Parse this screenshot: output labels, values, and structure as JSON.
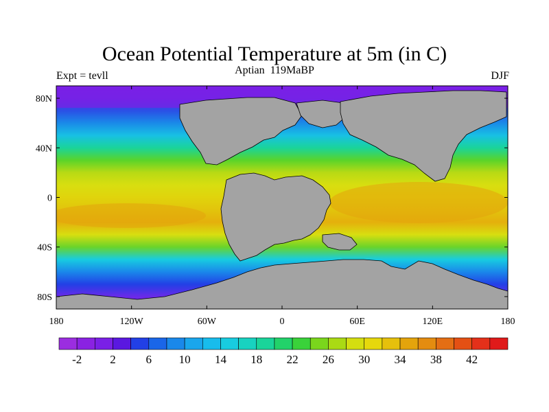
{
  "title": "Ocean Potential Temperature at 5m (in C)",
  "subtitle": "Aptian   119MaBP",
  "left_label": "Expt = tevll",
  "right_label": "DJF",
  "lat_ticks": [
    "80N",
    "40N",
    "0",
    "40S",
    "80S"
  ],
  "lon_ticks": [
    "180",
    "120W",
    "60W",
    "0",
    "60E",
    "120E",
    "180"
  ],
  "colorbar": {
    "labels": [
      "-2",
      "2",
      "6",
      "10",
      "14",
      "18",
      "22",
      "26",
      "30",
      "34",
      "38",
      "42"
    ],
    "colors": [
      "#9b2de0",
      "#8a22e2",
      "#7a20e6",
      "#5a18e0",
      "#2240e6",
      "#1a66e8",
      "#1a88ea",
      "#1aa6ec",
      "#18bcec",
      "#18cce0",
      "#18d2c0",
      "#1ad49a",
      "#22d26a",
      "#3ad23a",
      "#7ad61c",
      "#aada14",
      "#d4de10",
      "#e6d80c",
      "#e6c00c",
      "#e4a40c",
      "#e48c10",
      "#e46e14",
      "#e45014",
      "#e4301a",
      "#e01a1a"
    ]
  },
  "land_color": "#a3a3a3",
  "ocean_gradient": [
    {
      "lat": 90,
      "color": "#7a20e6"
    },
    {
      "lat": 80,
      "color": "#6a2ae8"
    },
    {
      "lat": 70,
      "color": "#2a50e6"
    },
    {
      "lat": 60,
      "color": "#1a8ae8"
    },
    {
      "lat": 50,
      "color": "#18c0e4"
    },
    {
      "lat": 40,
      "color": "#1ad49a"
    },
    {
      "lat": 30,
      "color": "#5ad42a"
    },
    {
      "lat": 20,
      "color": "#b8da14"
    },
    {
      "lat": 10,
      "color": "#d8de10"
    },
    {
      "lat": 0,
      "color": "#e0d40c"
    },
    {
      "lat": -10,
      "color": "#e2c40c"
    },
    {
      "lat": -20,
      "color": "#e4b00c"
    },
    {
      "lat": -30,
      "color": "#d8de10"
    },
    {
      "lat": -40,
      "color": "#6ad42a"
    },
    {
      "lat": -50,
      "color": "#18cce0"
    },
    {
      "lat": -60,
      "color": "#1a88ea"
    },
    {
      "lat": -70,
      "color": "#2240e6"
    },
    {
      "lat": -80,
      "color": "#6a2ae8"
    },
    {
      "lat": -90,
      "color": "#8a22e2"
    }
  ]
}
